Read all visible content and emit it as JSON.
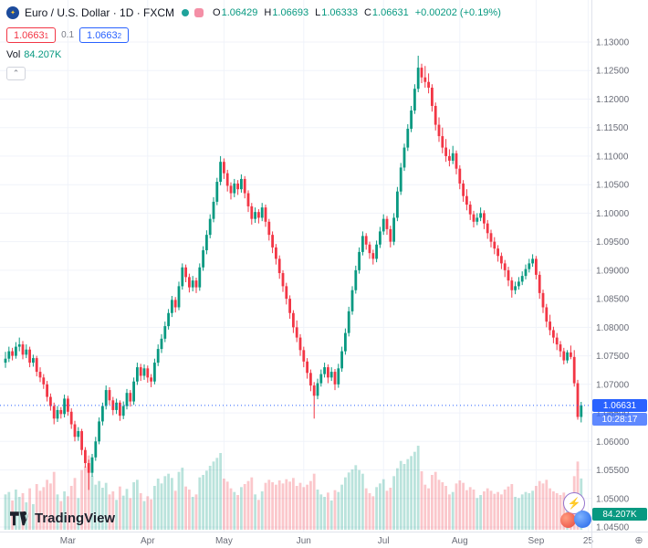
{
  "header": {
    "symbol_title": "Euro / U.S. Dollar · 1D · FXCM",
    "ohlc": {
      "o_label": "O",
      "o_value": "1.06429",
      "h_label": "H",
      "h_value": "1.06693",
      "l_label": "L",
      "l_value": "1.06333",
      "c_label": "C",
      "c_value": "1.06631",
      "change": "+0.00202 (+0.19%)"
    },
    "sell": {
      "main": "1.0663",
      "sup": "1"
    },
    "spread": "0.1",
    "buy": {
      "main": "1.0663",
      "sup": "2"
    },
    "vol_label": "Vol",
    "vol_value": "84.207K",
    "collapse_glyph": "⌃"
  },
  "chart_data": {
    "type": "candlestick",
    "instrument": "Euro / U.S. Dollar",
    "interval": "1D",
    "feed": "FXCM",
    "price_axis": {
      "min": 1.045,
      "max": 1.13,
      "ticks": [
        "1.13000",
        "1.12500",
        "1.12000",
        "1.11500",
        "1.11000",
        "1.10500",
        "1.10000",
        "1.09500",
        "1.09000",
        "1.08500",
        "1.08000",
        "1.07500",
        "1.07000",
        "1.06500",
        "1.06000",
        "1.05500",
        "1.05000",
        "1.04500"
      ]
    },
    "time_axis": {
      "labels": [
        {
          "label": "Mar",
          "index": 18
        },
        {
          "label": "Apr",
          "index": 41
        },
        {
          "label": "May",
          "index": 63
        },
        {
          "label": "Jun",
          "index": 86
        },
        {
          "label": "Jul",
          "index": 109
        },
        {
          "label": "Aug",
          "index": 131
        },
        {
          "label": "Sep",
          "index": 153
        },
        {
          "label": "25",
          "index": 168
        }
      ]
    },
    "last_price_label": "1.06631",
    "countdown": "10:28:17",
    "volume_tag": "84.207K",
    "colors": {
      "up": "#089981",
      "down": "#f23645",
      "vol_up": "rgba(8,153,129,0.28)",
      "vol_down": "rgba(242,54,69,0.28)",
      "accent_blue": "#2962ff",
      "grid": "#f0f3fa",
      "axis_text": "#6a6d78"
    },
    "candle_format": [
      "open",
      "high",
      "low",
      "close",
      "volume_k"
    ],
    "candles": [
      [
        1.0738,
        1.0757,
        1.0729,
        1.0745,
        58
      ],
      [
        1.0745,
        1.0766,
        1.0739,
        1.0758,
        62
      ],
      [
        1.0758,
        1.0764,
        1.0742,
        1.075,
        48
      ],
      [
        1.075,
        1.0774,
        1.0745,
        1.0766,
        66
      ],
      [
        1.0766,
        1.0782,
        1.0758,
        1.077,
        54
      ],
      [
        1.077,
        1.0776,
        1.0744,
        1.0752,
        60
      ],
      [
        1.0752,
        1.077,
        1.0746,
        1.0761,
        45
      ],
      [
        1.0761,
        1.0766,
        1.073,
        1.0738,
        68
      ],
      [
        1.0738,
        1.0752,
        1.0731,
        1.0746,
        42
      ],
      [
        1.0746,
        1.075,
        1.0714,
        1.0722,
        75
      ],
      [
        1.0722,
        1.073,
        1.0704,
        1.0712,
        64
      ],
      [
        1.0712,
        1.0718,
        1.0692,
        1.07,
        70
      ],
      [
        1.07,
        1.0706,
        1.067,
        1.0678,
        82
      ],
      [
        1.0678,
        1.0684,
        1.0654,
        1.0662,
        76
      ],
      [
        1.0662,
        1.0668,
        1.063,
        1.064,
        95
      ],
      [
        1.064,
        1.0662,
        1.0634,
        1.0655,
        58
      ],
      [
        1.0655,
        1.066,
        1.064,
        1.0648,
        47
      ],
      [
        1.0648,
        1.0682,
        1.0642,
        1.0675,
        63
      ],
      [
        1.0675,
        1.068,
        1.0645,
        1.0652,
        55
      ],
      [
        1.0652,
        1.0658,
        1.0622,
        1.063,
        72
      ],
      [
        1.063,
        1.0636,
        1.06,
        1.0608,
        85
      ],
      [
        1.0608,
        1.0625,
        1.0601,
        1.0618,
        52
      ],
      [
        1.0618,
        1.0622,
        1.0576,
        1.0585,
        98
      ],
      [
        1.0585,
        1.059,
        1.0554,
        1.0562,
        104
      ],
      [
        1.0562,
        1.0568,
        1.0515,
        1.0545,
        122
      ],
      [
        1.0545,
        1.0578,
        1.0538,
        1.0572,
        88
      ],
      [
        1.0572,
        1.0608,
        1.0566,
        1.06,
        74
      ],
      [
        1.06,
        1.0642,
        1.0595,
        1.0635,
        80
      ],
      [
        1.0635,
        1.0668,
        1.0628,
        1.0662,
        69
      ],
      [
        1.0662,
        1.0698,
        1.0656,
        1.069,
        77
      ],
      [
        1.069,
        1.0695,
        1.0664,
        1.0672,
        58
      ],
      [
        1.0672,
        1.0678,
        1.0646,
        1.0655,
        63
      ],
      [
        1.0655,
        1.0675,
        1.0648,
        1.0668,
        49
      ],
      [
        1.0668,
        1.0672,
        1.0636,
        1.0645,
        71
      ],
      [
        1.0645,
        1.067,
        1.0639,
        1.0662,
        56
      ],
      [
        1.0662,
        1.0692,
        1.0656,
        1.0685,
        67
      ],
      [
        1.0685,
        1.069,
        1.0661,
        1.067,
        52
      ],
      [
        1.067,
        1.0712,
        1.0664,
        1.0705,
        78
      ],
      [
        1.0705,
        1.0738,
        1.0699,
        1.073,
        82
      ],
      [
        1.073,
        1.0736,
        1.0706,
        1.0715,
        60
      ],
      [
        1.0715,
        1.0735,
        1.0708,
        1.0728,
        47
      ],
      [
        1.0728,
        1.0733,
        1.0703,
        1.0712,
        55
      ],
      [
        1.0712,
        1.0718,
        1.0695,
        1.0705,
        50
      ],
      [
        1.0705,
        1.0745,
        1.07,
        1.0738,
        72
      ],
      [
        1.0738,
        1.077,
        1.0732,
        1.0762,
        84
      ],
      [
        1.0762,
        1.0788,
        1.0755,
        1.078,
        76
      ],
      [
        1.078,
        1.081,
        1.0774,
        1.0802,
        88
      ],
      [
        1.0802,
        1.0832,
        1.0796,
        1.0825,
        92
      ],
      [
        1.0825,
        1.0855,
        1.0818,
        1.0848,
        85
      ],
      [
        1.0848,
        1.0853,
        1.0826,
        1.0835,
        64
      ],
      [
        1.0835,
        1.088,
        1.083,
        1.0872,
        95
      ],
      [
        1.0872,
        1.0912,
        1.0866,
        1.0905,
        102
      ],
      [
        1.0905,
        1.091,
        1.0879,
        1.0888,
        71
      ],
      [
        1.0888,
        1.0894,
        1.0861,
        1.087,
        66
      ],
      [
        1.087,
        1.089,
        1.0863,
        1.0882,
        54
      ],
      [
        1.0882,
        1.0887,
        1.086,
        1.087,
        58
      ],
      [
        1.087,
        1.0912,
        1.0864,
        1.0905,
        86
      ],
      [
        1.0905,
        1.0942,
        1.0899,
        1.0935,
        90
      ],
      [
        1.0935,
        1.097,
        1.0928,
        1.0962,
        97
      ],
      [
        1.0962,
        1.0998,
        1.0956,
        1.099,
        105
      ],
      [
        1.099,
        1.1028,
        1.0984,
        1.102,
        112
      ],
      [
        1.102,
        1.1062,
        1.1014,
        1.1055,
        118
      ],
      [
        1.1055,
        1.11,
        1.1049,
        1.109,
        126
      ],
      [
        1.109,
        1.1096,
        1.106,
        1.107,
        84
      ],
      [
        1.107,
        1.1076,
        1.1038,
        1.1048,
        79
      ],
      [
        1.1048,
        1.1054,
        1.1024,
        1.1035,
        68
      ],
      [
        1.1035,
        1.106,
        1.1028,
        1.1052,
        62
      ],
      [
        1.1052,
        1.1058,
        1.1032,
        1.1042,
        57
      ],
      [
        1.1042,
        1.1068,
        1.1036,
        1.106,
        70
      ],
      [
        1.106,
        1.1065,
        1.1026,
        1.1035,
        75
      ],
      [
        1.1035,
        1.104,
        1.1002,
        1.1012,
        80
      ],
      [
        1.1012,
        1.1018,
        1.098,
        1.099,
        86
      ],
      [
        1.099,
        1.101,
        1.0983,
        1.1002,
        58
      ],
      [
        1.1002,
        1.1007,
        1.0982,
        1.0992,
        49
      ],
      [
        1.0992,
        1.1018,
        1.0986,
        1.101,
        63
      ],
      [
        1.101,
        1.1015,
        1.0976,
        1.0985,
        77
      ],
      [
        1.0985,
        1.099,
        1.0952,
        1.0962,
        82
      ],
      [
        1.0962,
        1.0968,
        1.093,
        1.094,
        78
      ],
      [
        1.094,
        1.0946,
        1.091,
        1.092,
        74
      ],
      [
        1.092,
        1.0926,
        1.0885,
        1.0895,
        81
      ],
      [
        1.0895,
        1.09,
        1.0862,
        1.0872,
        76
      ],
      [
        1.0872,
        1.0878,
        1.084,
        1.085,
        83
      ],
      [
        1.085,
        1.0856,
        1.0815,
        1.0825,
        79
      ],
      [
        1.0825,
        1.083,
        1.079,
        1.08,
        85
      ],
      [
        1.08,
        1.0812,
        1.0774,
        1.0782,
        72
      ],
      [
        1.0782,
        1.0788,
        1.075,
        1.076,
        77
      ],
      [
        1.076,
        1.0766,
        1.073,
        1.074,
        70
      ],
      [
        1.074,
        1.0746,
        1.071,
        1.072,
        74
      ],
      [
        1.072,
        1.0726,
        1.0688,
        1.0698,
        80
      ],
      [
        1.0698,
        1.0704,
        1.064,
        1.068,
        92
      ],
      [
        1.068,
        1.071,
        1.0674,
        1.0702,
        66
      ],
      [
        1.0702,
        1.0726,
        1.0696,
        1.0718,
        58
      ],
      [
        1.0718,
        1.0738,
        1.0712,
        1.073,
        54
      ],
      [
        1.073,
        1.0735,
        1.0702,
        1.0712,
        61
      ],
      [
        1.0712,
        1.073,
        1.0706,
        1.0722,
        48
      ],
      [
        1.0722,
        1.0727,
        1.069,
        1.07,
        65
      ],
      [
        1.07,
        1.0736,
        1.0694,
        1.0728,
        62
      ],
      [
        1.0728,
        1.0766,
        1.0722,
        1.0758,
        74
      ],
      [
        1.0758,
        1.0798,
        1.0752,
        1.079,
        86
      ],
      [
        1.079,
        1.0836,
        1.0784,
        1.0828,
        94
      ],
      [
        1.0828,
        1.0872,
        1.0822,
        1.0865,
        99
      ],
      [
        1.0865,
        1.0908,
        1.0859,
        1.09,
        106
      ],
      [
        1.09,
        1.094,
        1.0894,
        1.0932,
        98
      ],
      [
        1.0932,
        1.0968,
        1.0926,
        1.096,
        92
      ],
      [
        1.096,
        1.0965,
        1.0936,
        1.0945,
        68
      ],
      [
        1.0945,
        1.095,
        1.092,
        1.093,
        60
      ],
      [
        1.093,
        1.0936,
        1.091,
        1.092,
        55
      ],
      [
        1.092,
        1.0952,
        1.0914,
        1.0945,
        70
      ],
      [
        1.0945,
        1.0976,
        1.0939,
        1.0968,
        76
      ],
      [
        1.0968,
        1.0998,
        1.0962,
        1.099,
        83
      ],
      [
        1.099,
        1.0995,
        1.0962,
        1.0972,
        64
      ],
      [
        1.0972,
        1.0978,
        1.094,
        1.095,
        69
      ],
      [
        1.095,
        1.1,
        1.0944,
        1.0992,
        88
      ],
      [
        1.0992,
        1.1046,
        1.0986,
        1.1038,
        101
      ],
      [
        1.1038,
        1.1088,
        1.1032,
        1.108,
        113
      ],
      [
        1.108,
        1.1122,
        1.1074,
        1.1115,
        108
      ],
      [
        1.1115,
        1.1156,
        1.1109,
        1.1148,
        116
      ],
      [
        1.1148,
        1.1188,
        1.1142,
        1.118,
        121
      ],
      [
        1.118,
        1.1226,
        1.1174,
        1.1218,
        128
      ],
      [
        1.1218,
        1.1276,
        1.1212,
        1.1255,
        138
      ],
      [
        1.1255,
        1.1262,
        1.1228,
        1.1238,
        96
      ],
      [
        1.1238,
        1.1258,
        1.122,
        1.123,
        74
      ],
      [
        1.123,
        1.1245,
        1.121,
        1.122,
        68
      ],
      [
        1.122,
        1.1226,
        1.1178,
        1.1188,
        90
      ],
      [
        1.1188,
        1.1194,
        1.1145,
        1.1155,
        95
      ],
      [
        1.1155,
        1.1168,
        1.1125,
        1.1135,
        82
      ],
      [
        1.1135,
        1.115,
        1.1105,
        1.1115,
        78
      ],
      [
        1.1115,
        1.113,
        1.109,
        1.11,
        72
      ],
      [
        1.11,
        1.1112,
        1.1082,
        1.1092,
        58
      ],
      [
        1.1092,
        1.1118,
        1.1086,
        1.1105,
        62
      ],
      [
        1.1105,
        1.111,
        1.1068,
        1.1078,
        76
      ],
      [
        1.1078,
        1.1084,
        1.1042,
        1.1052,
        81
      ],
      [
        1.1052,
        1.1058,
        1.102,
        1.103,
        77
      ],
      [
        1.103,
        1.1042,
        1.1005,
        1.1015,
        65
      ],
      [
        1.1015,
        1.1021,
        1.0988,
        1.0998,
        70
      ],
      [
        1.0998,
        1.1004,
        1.0975,
        1.0985,
        66
      ],
      [
        1.0985,
        1.1,
        1.0979,
        1.0992,
        52
      ],
      [
        1.0992,
        1.101,
        1.0986,
        1.1,
        57
      ],
      [
        1.1,
        1.1005,
        1.0972,
        1.0982,
        63
      ],
      [
        1.0982,
        1.0988,
        1.0955,
        1.0965,
        68
      ],
      [
        1.0965,
        1.0971,
        1.094,
        1.095,
        64
      ],
      [
        1.095,
        1.0958,
        1.0928,
        1.0938,
        59
      ],
      [
        1.0938,
        1.0944,
        1.0915,
        1.0925,
        62
      ],
      [
        1.0925,
        1.0931,
        1.0902,
        1.0912,
        58
      ],
      [
        1.0912,
        1.0918,
        1.0888,
        1.09,
        66
      ],
      [
        1.09,
        1.0906,
        1.0872,
        1.0882,
        71
      ],
      [
        1.0882,
        1.0888,
        1.0852,
        1.0865,
        75
      ],
      [
        1.0865,
        1.088,
        1.0858,
        1.0872,
        54
      ],
      [
        1.0872,
        1.0888,
        1.0866,
        1.088,
        52
      ],
      [
        1.088,
        1.0898,
        1.0874,
        1.089,
        58
      ],
      [
        1.089,
        1.091,
        1.0884,
        1.0902,
        62
      ],
      [
        1.0902,
        1.092,
        1.0896,
        1.0912,
        60
      ],
      [
        1.0912,
        1.0928,
        1.0906,
        1.092,
        64
      ],
      [
        1.092,
        1.0925,
        1.0884,
        1.0892,
        72
      ],
      [
        1.0892,
        1.0898,
        1.085,
        1.086,
        80
      ],
      [
        1.086,
        1.0866,
        1.0825,
        1.0835,
        76
      ],
      [
        1.0835,
        1.0841,
        1.08,
        1.081,
        82
      ],
      [
        1.081,
        1.0822,
        1.0786,
        1.0795,
        68
      ],
      [
        1.0795,
        1.0801,
        1.0772,
        1.0782,
        63
      ],
      [
        1.0782,
        1.079,
        1.076,
        1.077,
        60
      ],
      [
        1.077,
        1.0776,
        1.0748,
        1.0758,
        57
      ],
      [
        1.0758,
        1.0764,
        1.0735,
        1.0742,
        61
      ],
      [
        1.0742,
        1.076,
        1.0737,
        1.0756,
        49
      ],
      [
        1.0756,
        1.0768,
        1.0744,
        1.0748,
        52
      ],
      [
        1.0748,
        1.076,
        1.0696,
        1.0702,
        88
      ],
      [
        1.0702,
        1.0708,
        1.0638,
        1.06429,
        112
      ],
      [
        1.06429,
        1.06693,
        1.06333,
        1.06631,
        84.207
      ]
    ]
  },
  "footer": {
    "logo_text": "TradingView"
  },
  "widgets": {
    "lightning_glyph": "⚡",
    "axis_corner_glyph": "⊕"
  }
}
